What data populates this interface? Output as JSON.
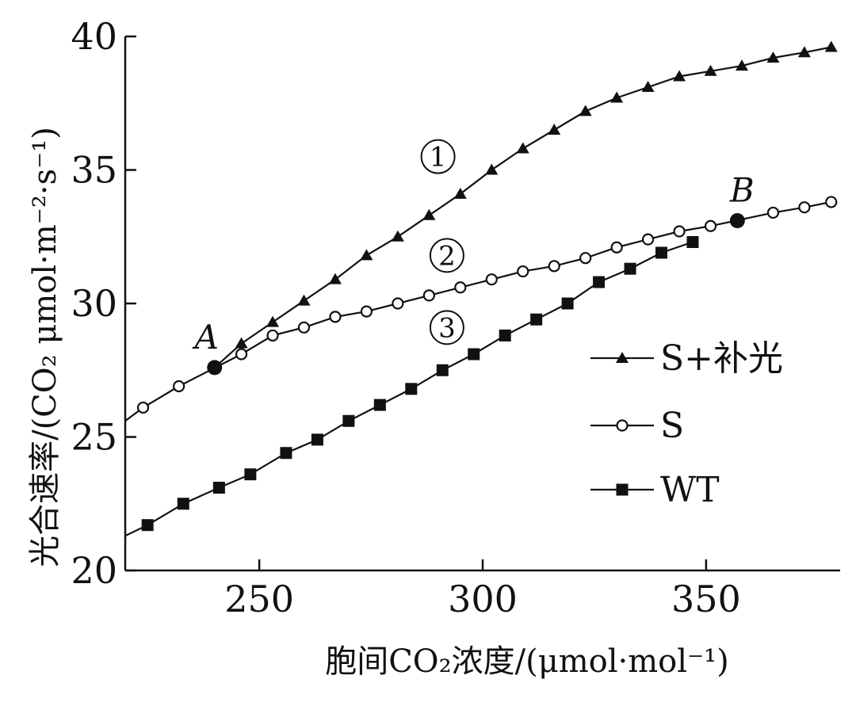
{
  "chart_data": {
    "type": "line",
    "xlabel": "胞间CO₂浓度/(μmol·mol⁻¹)",
    "ylabel": "光合速率/(CO₂ μmol·m⁻²·s⁻¹)",
    "xlim": [
      220,
      380
    ],
    "ylim": [
      20,
      40
    ],
    "x_ticks": [
      "250",
      "300",
      "350"
    ],
    "y_ticks": [
      "20",
      "25",
      "30",
      "35",
      "40"
    ],
    "grid": false,
    "legend": "right",
    "series": [
      {
        "name": "S+补光",
        "marker": "filled-triangle",
        "x": [
          246,
          253,
          260,
          267,
          274,
          281,
          288,
          295,
          302,
          309,
          316,
          323,
          330,
          337,
          344,
          351,
          358,
          365,
          372,
          378
        ],
        "y": [
          28.5,
          29.3,
          30.1,
          30.9,
          31.8,
          32.5,
          33.3,
          34.1,
          35.0,
          35.8,
          36.5,
          37.2,
          37.7,
          38.1,
          38.5,
          38.7,
          38.9,
          39.2,
          39.4,
          39.6
        ]
      },
      {
        "name": "S",
        "marker": "open-circle",
        "x": [
          224,
          232,
          246,
          253,
          260,
          267,
          274,
          281,
          288,
          295,
          302,
          309,
          316,
          323,
          330,
          337,
          344,
          351,
          365,
          372,
          378
        ],
        "y": [
          26.1,
          26.9,
          28.1,
          28.8,
          29.1,
          29.5,
          29.7,
          30.0,
          30.3,
          30.6,
          30.9,
          31.2,
          31.4,
          31.7,
          32.1,
          32.4,
          32.7,
          32.9,
          33.4,
          33.6,
          33.8
        ]
      },
      {
        "name": "WT",
        "marker": "filled-square",
        "x": [
          225,
          233,
          241,
          248,
          256,
          263,
          270,
          277,
          284,
          291,
          298,
          305,
          312,
          319,
          326,
          333,
          340,
          347
        ],
        "y": [
          21.7,
          22.5,
          23.1,
          23.6,
          24.4,
          24.9,
          25.6,
          26.2,
          26.8,
          27.5,
          28.1,
          28.8,
          29.4,
          30.0,
          30.8,
          31.3,
          31.9,
          32.3
        ]
      }
    ],
    "annotations": [
      {
        "text": "A",
        "x": 240,
        "y": 27.6
      },
      {
        "text": "B",
        "x": 357,
        "y": 33.1
      }
    ],
    "curve_labels": [
      {
        "text": "①",
        "x": 290,
        "y": 35.5
      },
      {
        "text": "②",
        "x": 292,
        "y": 31.8
      },
      {
        "text": "③",
        "x": 292,
        "y": 29.1
      }
    ]
  }
}
